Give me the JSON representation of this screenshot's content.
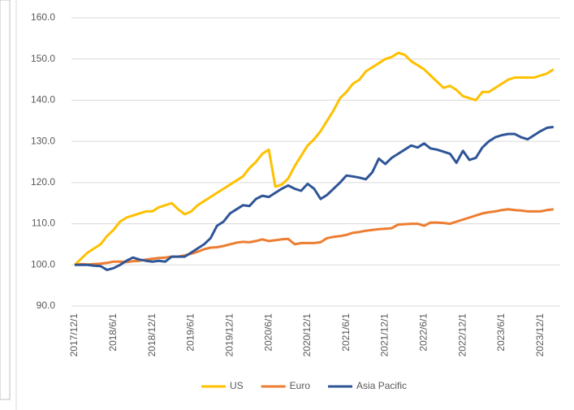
{
  "chart_data": {
    "type": "line",
    "categories": [
      "2017/12/1",
      null,
      null,
      null,
      null,
      null,
      "2018/6/1",
      null,
      null,
      null,
      null,
      null,
      "2018/12/1",
      null,
      null,
      null,
      null,
      null,
      "2019/6/1",
      null,
      null,
      null,
      null,
      null,
      "2019/12/1",
      null,
      null,
      null,
      null,
      null,
      "2020/6/1",
      null,
      null,
      null,
      null,
      null,
      "2020/12/1",
      null,
      null,
      null,
      null,
      null,
      "2021/6/1",
      null,
      null,
      null,
      null,
      null,
      "2021/12/1",
      null,
      null,
      null,
      null,
      null,
      "2022/6/1",
      null,
      null,
      null,
      null,
      null,
      "2022/12/1",
      null,
      null,
      null,
      null,
      null,
      "2023/6/1",
      null,
      null,
      null,
      null,
      null,
      "2023/12/1",
      null,
      null
    ],
    "series": [
      {
        "name": "US",
        "color": "#ffc000",
        "values": [
          100,
          101.5,
          103,
          104,
          105,
          107,
          108.5,
          110.5,
          111.5,
          112,
          112.5,
          113,
          113,
          114,
          114.5,
          115,
          113.5,
          112.3,
          113,
          114.5,
          115.5,
          116.5,
          117.5,
          118.5,
          119.5,
          120.5,
          121.5,
          123.5,
          125,
          127,
          128,
          119,
          119.5,
          121,
          124,
          126.5,
          129,
          130.5,
          132.5,
          135,
          137.5,
          140.5,
          142,
          144,
          145,
          147,
          148,
          149,
          150,
          150.5,
          151.5,
          151,
          149.5,
          148.5,
          147.5,
          146,
          144.5,
          143,
          143.5,
          142.5,
          141,
          140.5,
          140,
          142,
          142,
          143,
          144,
          145,
          145.5,
          145.5,
          145.5,
          145.5,
          146,
          146.5,
          147.5
        ]
      },
      {
        "name": "Euro",
        "color": "#ed7d31",
        "values": [
          100,
          100.2,
          100.1,
          100.2,
          100.3,
          100.5,
          100.8,
          100.8,
          100.7,
          100.9,
          101,
          101.3,
          101.5,
          101.7,
          101.8,
          102,
          102,
          102.3,
          102.7,
          103.2,
          103.8,
          104.2,
          104.3,
          104.6,
          105,
          105.4,
          105.6,
          105.5,
          105.8,
          106.2,
          105.8,
          106,
          106.2,
          106.3,
          105,
          105.3,
          105.3,
          105.3,
          105.5,
          106.5,
          106.8,
          107,
          107.3,
          107.8,
          108,
          108.3,
          108.5,
          108.7,
          108.8,
          108.9,
          109.8,
          109.9,
          110,
          110,
          109.5,
          110.3,
          110.3,
          110.2,
          110,
          110.5,
          111,
          111.5,
          112,
          112.5,
          112.8,
          113,
          113.3,
          113.5,
          113.3,
          113.2,
          113,
          113,
          113,
          113.3,
          113.5
        ]
      },
      {
        "name": "Asia Pacific",
        "color": "#2f5597",
        "values": [
          100,
          100,
          100,
          99.8,
          99.7,
          98.8,
          99.2,
          100,
          101,
          101.8,
          101.3,
          101,
          100.8,
          101,
          100.8,
          102,
          102,
          102,
          103,
          104,
          105,
          106.5,
          109.5,
          110.5,
          112.5,
          113.5,
          114.5,
          114.3,
          116,
          116.8,
          116.5,
          117.5,
          118.5,
          119.3,
          118.5,
          118,
          119.7,
          118.5,
          116,
          117,
          118.5,
          120,
          121.7,
          121.5,
          121.2,
          120.8,
          122.5,
          125.8,
          124.5,
          126,
          127,
          128,
          129,
          128.5,
          129.5,
          128.3,
          128,
          127.5,
          127,
          124.8,
          127.7,
          125.5,
          126,
          128.5,
          130,
          131,
          131.5,
          131.8,
          131.8,
          131,
          130.5,
          131.5,
          132.5,
          133.3,
          133.5
        ]
      }
    ],
    "ylim": [
      90,
      160
    ],
    "yticks": [
      {
        "value": 90,
        "label": "90.0"
      },
      {
        "value": 100,
        "label": "100.0"
      },
      {
        "value": 110,
        "label": "110.0"
      },
      {
        "value": 120,
        "label": "120.0"
      },
      {
        "value": 130,
        "label": "130.0"
      },
      {
        "value": 140,
        "label": "140.0"
      },
      {
        "value": 150,
        "label": "150.0"
      },
      {
        "value": 160,
        "label": "160.0"
      }
    ],
    "grid": true,
    "legend": "bottom"
  }
}
